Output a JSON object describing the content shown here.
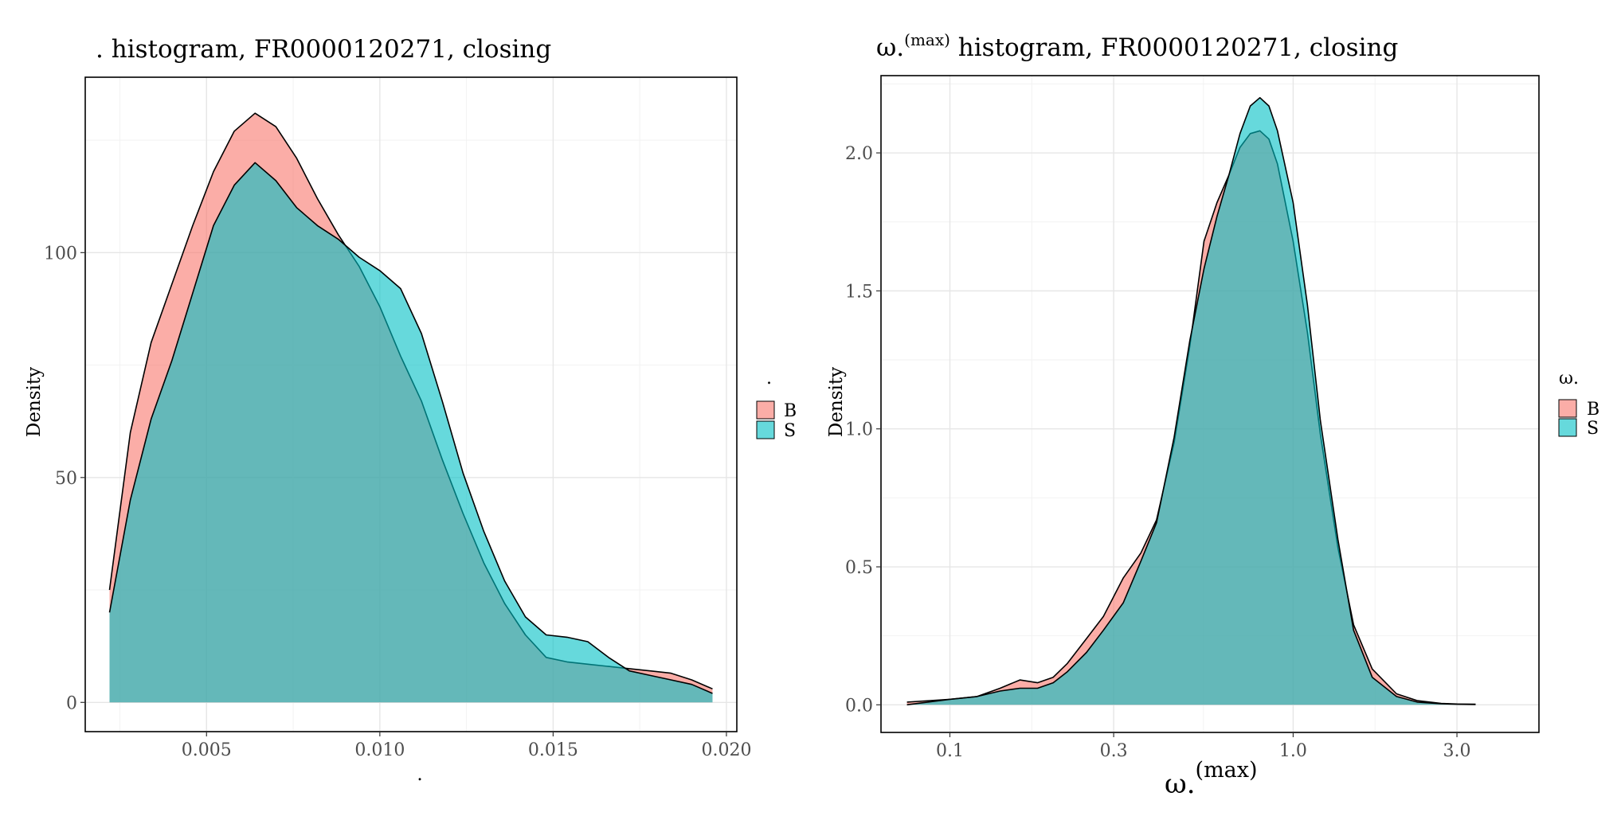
{
  "chart_data": [
    {
      "type": "area",
      "title": ". histogram, FR0000120271, closing",
      "xlabel": ".",
      "ylabel": "Density",
      "xlim": [
        0.0015,
        0.0203
      ],
      "ylim": [
        -6.5,
        139
      ],
      "x_scale": "linear",
      "x_ticks": [
        0.005,
        0.01,
        0.015,
        0.02
      ],
      "x_tick_labels": [
        "0.005",
        "0.010",
        "0.015",
        "0.020"
      ],
      "y_ticks": [
        0,
        50,
        100
      ],
      "y_tick_labels": [
        "0",
        "50",
        "100"
      ],
      "grid": true,
      "legend": {
        "title": ".",
        "position": "right",
        "entries": [
          "B",
          "S"
        ]
      },
      "series": [
        {
          "name": "B",
          "color": "#F8766D",
          "x": [
            0.0022,
            0.0028,
            0.0034,
            0.004,
            0.0046,
            0.0052,
            0.0058,
            0.0064,
            0.007,
            0.0076,
            0.0082,
            0.0088,
            0.0094,
            0.01,
            0.0106,
            0.0112,
            0.0118,
            0.0124,
            0.013,
            0.0136,
            0.0142,
            0.0148,
            0.0154,
            0.016,
            0.0166,
            0.0172,
            0.0178,
            0.0184,
            0.019,
            0.0196
          ],
          "values": [
            25,
            60,
            80,
            93,
            106,
            118,
            127,
            131,
            128,
            121,
            112,
            104,
            97,
            88,
            77,
            67,
            54,
            42,
            31,
            22,
            15,
            10,
            9,
            8.5,
            8,
            7.5,
            7,
            6.5,
            5,
            3
          ]
        },
        {
          "name": "S",
          "color": "#00BFC4",
          "x": [
            0.0022,
            0.0028,
            0.0034,
            0.004,
            0.0046,
            0.0052,
            0.0058,
            0.0064,
            0.007,
            0.0076,
            0.0082,
            0.0088,
            0.0094,
            0.01,
            0.0106,
            0.0112,
            0.0118,
            0.0124,
            0.013,
            0.0136,
            0.0142,
            0.0148,
            0.0154,
            0.016,
            0.0166,
            0.0172,
            0.0178,
            0.0184,
            0.019,
            0.0196
          ],
          "values": [
            20,
            45,
            63,
            76,
            91,
            106,
            115,
            120,
            116,
            110,
            106,
            103,
            99,
            96,
            92,
            82,
            67,
            51,
            38,
            27,
            19,
            15,
            14.5,
            13.5,
            10,
            7,
            6,
            5,
            4,
            2
          ]
        }
      ]
    },
    {
      "type": "area",
      "title": "ω.",
      "title_sup": "(max)",
      "title_rest": " histogram, FR0000120271, closing",
      "xlabel": "ω.",
      "xlabel_sup": "(max)",
      "ylabel": "Density",
      "xlim": [
        0.063,
        5.2
      ],
      "ylim": [
        -0.1,
        2.28
      ],
      "x_scale": "log10",
      "x_ticks": [
        0.1,
        0.3,
        1.0,
        3.0
      ],
      "x_tick_labels": [
        "0.1",
        "0.3",
        "1.0",
        "3.0"
      ],
      "y_ticks": [
        0.0,
        0.5,
        1.0,
        1.5,
        2.0
      ],
      "y_tick_labels": [
        "0.0",
        "0.5",
        "1.0",
        "1.5",
        "2.0"
      ],
      "grid": true,
      "legend": {
        "title": "ω.",
        "position": "right",
        "entries": [
          "B",
          "S"
        ]
      },
      "series": [
        {
          "name": "B",
          "color": "#F8766D",
          "x": [
            0.075,
            0.1,
            0.12,
            0.14,
            0.16,
            0.18,
            0.2,
            0.22,
            0.25,
            0.28,
            0.32,
            0.36,
            0.4,
            0.45,
            0.5,
            0.55,
            0.6,
            0.65,
            0.7,
            0.75,
            0.8,
            0.85,
            0.9,
            1.0,
            1.1,
            1.2,
            1.35,
            1.5,
            1.7,
            2.0,
            2.3,
            2.7,
            3.0,
            3.4
          ],
          "values": [
            0.01,
            0.02,
            0.03,
            0.06,
            0.09,
            0.08,
            0.1,
            0.15,
            0.24,
            0.32,
            0.46,
            0.55,
            0.67,
            0.95,
            1.3,
            1.68,
            1.82,
            1.92,
            2.02,
            2.07,
            2.08,
            2.05,
            1.96,
            1.68,
            1.35,
            0.98,
            0.57,
            0.29,
            0.13,
            0.04,
            0.015,
            0.005,
            0.003,
            0.002
          ]
        },
        {
          "name": "S",
          "color": "#00BFC4",
          "x": [
            0.075,
            0.1,
            0.12,
            0.14,
            0.16,
            0.18,
            0.2,
            0.22,
            0.25,
            0.28,
            0.32,
            0.36,
            0.4,
            0.45,
            0.5,
            0.55,
            0.6,
            0.65,
            0.7,
            0.75,
            0.8,
            0.85,
            0.9,
            1.0,
            1.1,
            1.2,
            1.35,
            1.5,
            1.7,
            2.0,
            2.3,
            2.7,
            3.0,
            3.4
          ],
          "values": [
            0.0,
            0.02,
            0.03,
            0.05,
            0.06,
            0.06,
            0.08,
            0.12,
            0.19,
            0.27,
            0.37,
            0.52,
            0.66,
            0.97,
            1.32,
            1.58,
            1.77,
            1.92,
            2.07,
            2.17,
            2.2,
            2.17,
            2.08,
            1.82,
            1.45,
            1.03,
            0.6,
            0.27,
            0.1,
            0.03,
            0.01,
            0.004,
            0.002,
            0.001
          ]
        }
      ]
    }
  ]
}
